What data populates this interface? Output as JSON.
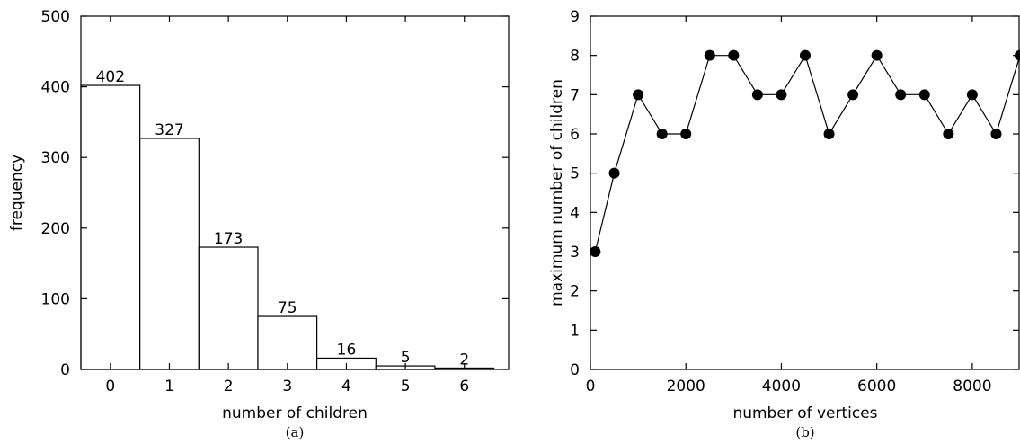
{
  "chart_data": [
    {
      "type": "bar",
      "caption": "(a)",
      "title": "",
      "xlabel": "number of children",
      "ylabel": "frequency",
      "categories": [
        "0",
        "1",
        "2",
        "3",
        "4",
        "5",
        "6"
      ],
      "values": [
        402,
        327,
        173,
        75,
        16,
        5,
        2
      ],
      "data_labels": [
        "402",
        "327",
        "173",
        "75",
        "16",
        "5",
        "2"
      ],
      "ylim": [
        0,
        500
      ],
      "yticks": [
        0,
        100,
        200,
        300,
        400,
        500
      ],
      "xlim": [
        -0.5,
        6.75
      ],
      "bar_fill": "#ffffff",
      "bar_stroke": "#000000",
      "grid": false,
      "legend": "none"
    },
    {
      "type": "line",
      "caption": "(b)",
      "title": "",
      "xlabel": "number of vertices",
      "ylabel": "maximum number of children",
      "x": [
        100,
        500,
        1000,
        1500,
        2000,
        2500,
        3000,
        3500,
        4000,
        4500,
        5000,
        5500,
        6000,
        6500,
        7000,
        7500,
        8000,
        8500,
        9000
      ],
      "y": [
        3,
        5,
        7,
        6,
        6,
        8,
        8,
        7,
        7,
        8,
        6,
        7,
        8,
        7,
        7,
        6,
        7,
        6,
        8
      ],
      "xlim": [
        0,
        9000
      ],
      "ylim": [
        0,
        9
      ],
      "xticks": [
        0,
        2000,
        4000,
        6000,
        8000
      ],
      "yticks": [
        0,
        1,
        2,
        3,
        4,
        5,
        6,
        7,
        8,
        9
      ],
      "marker": "filled-circle",
      "line_color": "#000000",
      "grid": false,
      "legend": "none"
    }
  ]
}
